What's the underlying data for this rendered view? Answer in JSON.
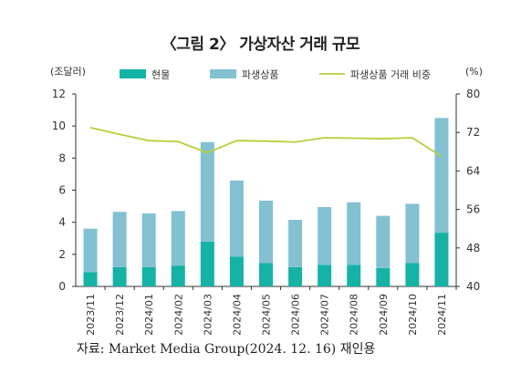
{
  "title": "〈그림 2〉 가상자산 거래 규모",
  "source": "자료: Market Media Group(2024. 12. 16) 재인용",
  "chart_data": {
    "type": "bar",
    "stacked": true,
    "categories": [
      "2023/11",
      "2023/12",
      "2024/01",
      "2024/02",
      "2024/03",
      "2024/04",
      "2024/05",
      "2024/06",
      "2024/07",
      "2024/08",
      "2024/09",
      "2024/10",
      "2024/11"
    ],
    "series": [
      {
        "name": "현물",
        "axis": "left",
        "color": "#13b3a6",
        "values": [
          0.9,
          1.2,
          1.2,
          1.3,
          2.8,
          1.85,
          1.45,
          1.2,
          1.35,
          1.35,
          1.15,
          1.45,
          3.35
        ]
      },
      {
        "name": "파생상품",
        "axis": "left",
        "color": "#82c1d2",
        "values": [
          2.7,
          3.45,
          3.35,
          3.4,
          6.2,
          4.75,
          3.9,
          2.95,
          3.6,
          3.9,
          3.25,
          3.7,
          7.15
        ]
      },
      {
        "name": "파생상품 거래 비중",
        "axis": "right",
        "type": "line",
        "color": "#b8cf3a",
        "values": [
          73,
          71.6,
          70.3,
          70.1,
          67.8,
          70.3,
          70.2,
          70,
          70.9,
          70.8,
          70.7,
          70.9,
          67
        ]
      }
    ],
    "left_axis": {
      "unit_label": "(조달러)",
      "min": 0,
      "max": 12,
      "ticks": [
        0,
        2,
        4,
        6,
        8,
        10,
        12
      ]
    },
    "right_axis": {
      "unit_label": "(%)",
      "min": 40,
      "max": 80,
      "ticks": [
        40,
        48,
        56,
        64,
        72,
        80
      ]
    },
    "legend_position": "top",
    "grid": false
  }
}
